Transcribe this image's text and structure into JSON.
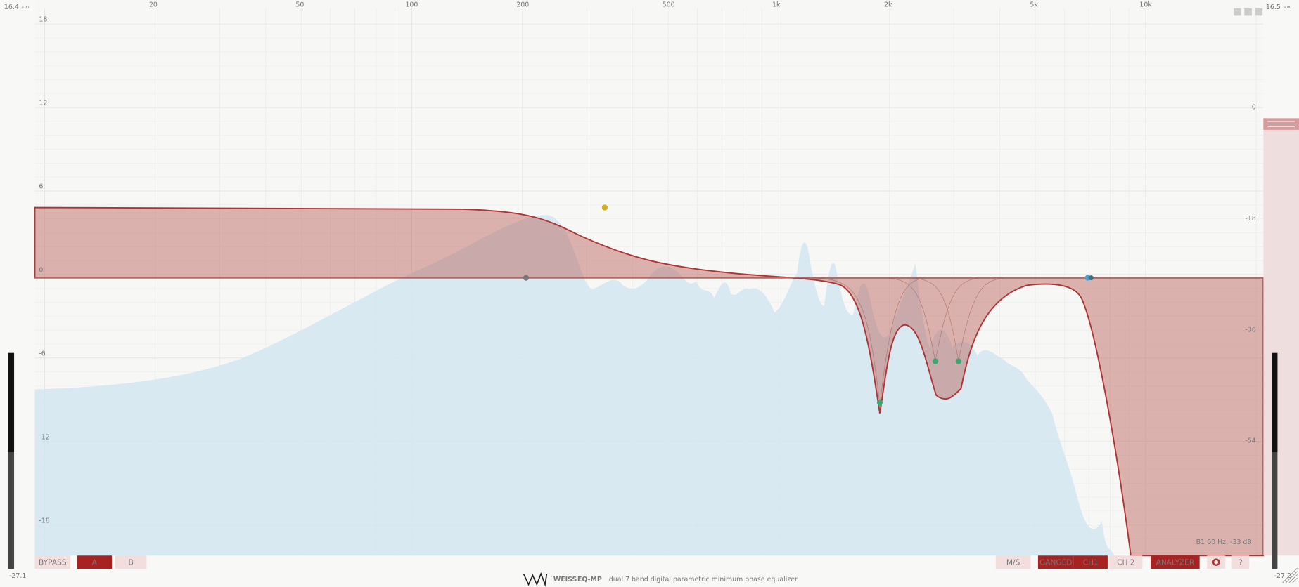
{
  "meters": {
    "left": {
      "peak": "16.4",
      "rms": "-∞",
      "bottom": "-27.1"
    },
    "right": {
      "peak": "16.5",
      "rms": "-∞",
      "bottom": "-27.2"
    }
  },
  "freq_axis": {
    "labels": [
      "20",
      "50",
      "100",
      "200",
      "500",
      "1k",
      "2k",
      "5k",
      "10k"
    ]
  },
  "gain_axis": {
    "labels": [
      "18",
      "12",
      "6",
      "0",
      "-6",
      "-12",
      "-18"
    ]
  },
  "analyzer_axis": {
    "labels": [
      "0",
      "-18",
      "-36",
      "-54"
    ]
  },
  "readout": "B1 60 Hz, -33 dB",
  "toolbar": {
    "left": [
      "BYPASS",
      "A",
      "B"
    ],
    "right": [
      "M/S",
      "GANGED",
      "CH1",
      "CH 2",
      "ANALYZER",
      "?"
    ]
  },
  "footer": {
    "brand": "WEISS",
    "product": "EQ-MP",
    "description": "dual 7 band digital parametric minimum phase equalizer"
  }
}
